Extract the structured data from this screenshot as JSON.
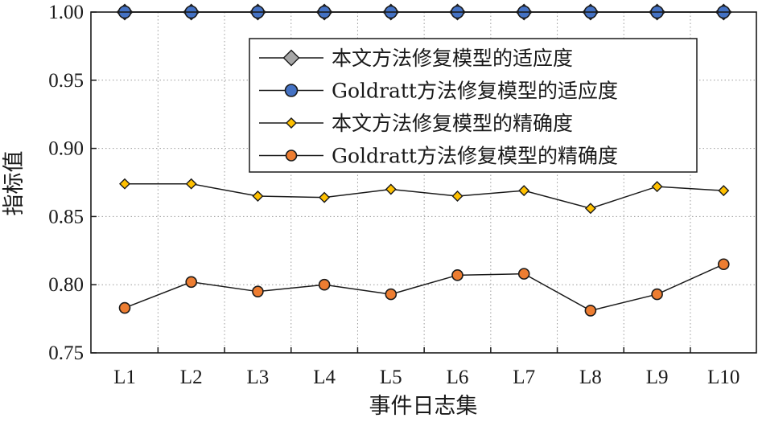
{
  "chart_data": {
    "type": "line",
    "xlabel": "事件日志集",
    "ylabel": "指标值",
    "categories": [
      "L1",
      "L2",
      "L3",
      "L4",
      "L5",
      "L6",
      "L7",
      "L8",
      "L9",
      "L10"
    ],
    "ylim": [
      0.75,
      1.0
    ],
    "yticks": [
      "0.75",
      "0.80",
      "0.85",
      "0.90",
      "0.95",
      "1.00"
    ],
    "grid": "dotted",
    "legend_position": "top-right",
    "series": [
      {
        "name": "本文方法修复模型的适应度",
        "marker": "diamond",
        "color": "#a6a6a6",
        "size": "large",
        "values": [
          1.0,
          1.0,
          1.0,
          1.0,
          1.0,
          1.0,
          1.0,
          1.0,
          1.0,
          1.0
        ]
      },
      {
        "name": "Goldratt方法修复模型的适应度",
        "marker": "circle",
        "color": "#4472c4",
        "size": "large",
        "values": [
          1.0,
          1.0,
          1.0,
          1.0,
          1.0,
          1.0,
          1.0,
          1.0,
          1.0,
          1.0
        ]
      },
      {
        "name": "本文方法修复模型的精确度",
        "marker": "diamond",
        "color": "#ffc000",
        "size": "small",
        "values": [
          0.874,
          0.874,
          0.865,
          0.864,
          0.87,
          0.865,
          0.869,
          0.856,
          0.872,
          0.869
        ]
      },
      {
        "name": "Goldratt方法修复模型的精确度",
        "marker": "circle",
        "color": "#ed7d31",
        "size": "small",
        "values": [
          0.783,
          0.802,
          0.795,
          0.8,
          0.793,
          0.807,
          0.808,
          0.781,
          0.793,
          0.815
        ]
      }
    ]
  }
}
